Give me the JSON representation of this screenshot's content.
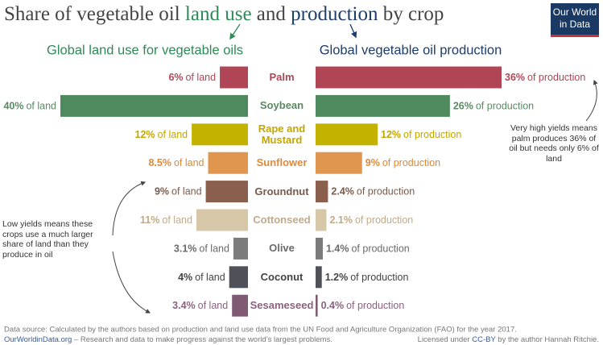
{
  "chart_data": {
    "type": "butterfly",
    "title": [
      {
        "text": "Share of vegetable oil ",
        "color": "#444444"
      },
      {
        "text": "land use",
        "color": "#2e8b57"
      },
      {
        "text": " and ",
        "color": "#444444"
      },
      {
        "text": "production",
        "color": "#1d3d6b"
      },
      {
        "text": " by crop",
        "color": "#444444"
      }
    ],
    "logo": [
      "Our World",
      "in Data"
    ],
    "categories": [
      "Palm",
      "Soybean",
      "Rape and Mustard",
      "Sunflower",
      "Groundnut",
      "Cottonseed",
      "Olive",
      "Coconut",
      "Sesameseed"
    ],
    "bar_colors": [
      "#b04556",
      "#4f8a5f",
      "#c4b200",
      "#e0964f",
      "#8b5f4e",
      "#d7c7a9",
      "#7b7b7b",
      "#4e5158",
      "#7f5a72"
    ],
    "label_colors": [
      "#b04556",
      "#5a8a63",
      "#c4a600",
      "#e08a35",
      "#7a5a4a",
      "#c0aa8a",
      "#6a6a6a",
      "#444444",
      "#8a6280"
    ],
    "series": [
      {
        "name": "Global land use for vegetable oils",
        "color": "#2e8b57",
        "side": "left",
        "xlim": [
          0,
          40
        ],
        "values": [
          6,
          40,
          12,
          8.5,
          9,
          11,
          3.1,
          4,
          3.4
        ],
        "value_labels": [
          "6%",
          "40%",
          "12%",
          "8.5%",
          "9%",
          "11%",
          "3.1%",
          "4%",
          "3.4%"
        ],
        "label_suffix": "of land"
      },
      {
        "name": "Global vegetable oil production",
        "color": "#1d3d6b",
        "side": "right",
        "xlim": [
          0,
          36
        ],
        "values": [
          36,
          26,
          12,
          9,
          2.4,
          2.1,
          1.4,
          1.2,
          0.4
        ],
        "value_labels": [
          "36%",
          "26%",
          "12%",
          "9%",
          "2.4%",
          "2.1%",
          "1.4%",
          "1.2%",
          "0.4%"
        ],
        "label_suffix": "of production"
      }
    ],
    "annotations": [
      "Very high yields means palm produces 36% of oil but needs only 6% of land",
      "Low yields means these crops use a much larger share of land than they produce in oil"
    ]
  },
  "footer": {
    "source": "Data source: Calculated by the authors based on production and land use data from the UN Food and Agriculture Organization (FAO) for the year 2017.",
    "site": "OurWorldinData.org",
    "mission": " – Research and data to make progress against the world’s largest problems.",
    "license": [
      "Licensed under ",
      "CC-BY",
      " by the author Hannah Ritchie."
    ]
  }
}
